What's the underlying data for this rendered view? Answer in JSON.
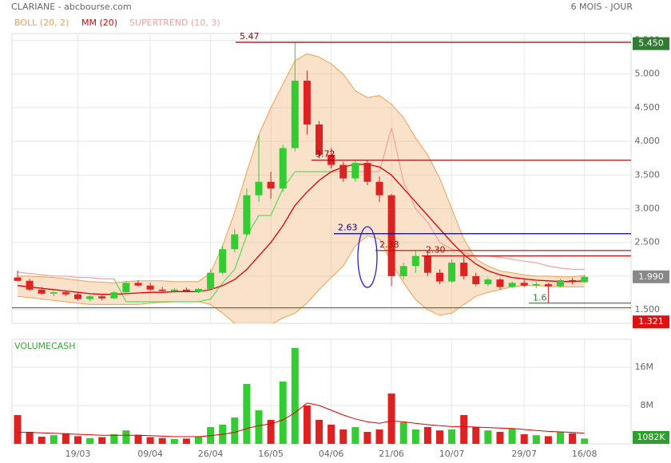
{
  "chart_data": {
    "type": "candlestick",
    "title": "CLARIANE - abcbourse.com",
    "period": "6 MOIS - JOUR",
    "categories": [
      null,
      null,
      null,
      null,
      null,
      "19/03",
      null,
      null,
      null,
      null,
      null,
      "09/04",
      null,
      null,
      null,
      null,
      "26/04",
      null,
      null,
      null,
      null,
      "16/05",
      null,
      null,
      null,
      null,
      "04/06",
      null,
      null,
      null,
      null,
      "21/06",
      null,
      null,
      null,
      null,
      "10/07",
      null,
      null,
      null,
      null,
      null,
      "29/07",
      null,
      null,
      null,
      null,
      "16/08"
    ],
    "open": [
      1.98,
      1.93,
      1.8,
      1.74,
      1.76,
      1.73,
      1.66,
      1.7,
      1.67,
      1.76,
      1.9,
      1.86,
      1.8,
      1.78,
      1.8,
      1.77,
      1.81,
      2.05,
      2.4,
      2.62,
      3.2,
      3.4,
      3.3,
      3.9,
      4.9,
      4.25,
      3.8,
      3.65,
      3.45,
      3.68,
      3.4,
      3.2,
      2.0,
      2.15,
      2.3,
      2.05,
      1.92,
      2.2,
      2.0,
      1.88,
      1.95,
      1.84,
      1.9,
      1.86,
      1.88,
      1.85,
      1.94,
      1.91
    ],
    "high": [
      2.08,
      1.96,
      1.84,
      1.78,
      1.79,
      1.76,
      1.72,
      1.74,
      1.78,
      1.92,
      1.94,
      1.9,
      1.84,
      1.82,
      1.83,
      1.82,
      2.1,
      2.45,
      2.7,
      3.3,
      4.1,
      3.55,
      3.95,
      5.47,
      5.05,
      4.3,
      3.9,
      3.7,
      3.72,
      3.72,
      3.48,
      3.22,
      2.2,
      2.38,
      2.35,
      2.1,
      2.25,
      2.3,
      2.05,
      1.98,
      1.97,
      1.92,
      1.96,
      1.92,
      1.9,
      1.96,
      1.97,
      2.02
    ],
    "low": [
      1.92,
      1.78,
      1.72,
      1.7,
      1.71,
      1.64,
      1.63,
      1.64,
      1.66,
      1.75,
      1.84,
      1.78,
      1.76,
      1.75,
      1.76,
      1.75,
      1.8,
      2.02,
      2.35,
      2.6,
      3.1,
      3.15,
      3.25,
      3.85,
      4.1,
      3.75,
      3.6,
      3.4,
      3.4,
      3.35,
      3.1,
      1.85,
      1.95,
      2.05,
      2.0,
      1.88,
      1.9,
      1.95,
      1.85,
      1.85,
      1.8,
      1.82,
      1.84,
      1.82,
      1.6,
      1.83,
      1.88,
      1.9
    ],
    "close": [
      1.93,
      1.8,
      1.74,
      1.76,
      1.73,
      1.66,
      1.7,
      1.67,
      1.76,
      1.9,
      1.86,
      1.8,
      1.78,
      1.8,
      1.77,
      1.81,
      2.05,
      2.4,
      2.62,
      3.2,
      3.4,
      3.3,
      3.9,
      4.9,
      4.25,
      3.8,
      3.65,
      3.45,
      3.68,
      3.4,
      3.2,
      2.0,
      2.15,
      2.3,
      2.05,
      1.92,
      2.2,
      2.0,
      1.88,
      1.95,
      1.84,
      1.9,
      1.86,
      1.88,
      1.85,
      1.94,
      1.91,
      1.99
    ],
    "up_color": "#33cc33",
    "down_color": "#dd2222",
    "ylim": [
      1.3,
      5.6
    ],
    "yticks": [
      {
        "value": 1.5,
        "label": "1.500"
      },
      {
        "value": 2,
        "label": "2.000"
      },
      {
        "value": 2.5,
        "label": "2.500"
      },
      {
        "value": 3,
        "label": "3.000"
      },
      {
        "value": 3.5,
        "label": "3.500"
      },
      {
        "value": 4,
        "label": "4.000"
      },
      {
        "value": 4.5,
        "label": "4.500"
      },
      {
        "value": 5,
        "label": "5.000"
      },
      {
        "value": 5.5,
        "label": "5.500"
      }
    ],
    "grid": true,
    "bollinger": {
      "name": "BOLL (20, 2)",
      "color": "#f0a050",
      "upper": [
        2.0,
        2.0,
        1.99,
        1.98,
        1.96,
        1.94,
        1.92,
        1.91,
        1.9,
        1.92,
        1.93,
        1.93,
        1.93,
        1.92,
        1.92,
        1.92,
        2.05,
        2.45,
        2.95,
        3.55,
        4.1,
        4.5,
        4.85,
        5.2,
        5.3,
        5.25,
        5.15,
        5.0,
        4.75,
        4.65,
        4.68,
        4.55,
        4.35,
        4.05,
        3.8,
        3.45,
        3.0,
        2.55,
        2.25,
        2.15,
        2.08,
        2.05,
        2.02,
        2.0,
        2.0,
        1.99,
        1.99,
        2.01
      ],
      "lower": [
        1.7,
        1.68,
        1.66,
        1.64,
        1.62,
        1.6,
        1.58,
        1.58,
        1.58,
        1.58,
        1.58,
        1.6,
        1.61,
        1.62,
        1.62,
        1.62,
        1.58,
        1.45,
        1.3,
        1.2,
        1.2,
        1.28,
        1.38,
        1.45,
        1.6,
        1.8,
        1.98,
        2.15,
        2.45,
        2.6,
        2.55,
        2.2,
        1.9,
        1.65,
        1.5,
        1.42,
        1.45,
        1.58,
        1.7,
        1.76,
        1.8,
        1.84,
        1.86,
        1.86,
        1.85,
        1.84,
        1.84,
        1.84
      ]
    },
    "moving_average": {
      "name": "MM (20)",
      "color": "#e00000",
      "values": [
        1.86,
        1.84,
        1.82,
        1.8,
        1.78,
        1.76,
        1.74,
        1.73,
        1.73,
        1.74,
        1.75,
        1.76,
        1.76,
        1.77,
        1.77,
        1.77,
        1.8,
        1.86,
        1.95,
        2.1,
        2.3,
        2.5,
        2.75,
        3.05,
        3.25,
        3.42,
        3.55,
        3.62,
        3.66,
        3.66,
        3.62,
        3.5,
        3.3,
        3.1,
        2.9,
        2.7,
        2.5,
        2.32,
        2.18,
        2.08,
        2.02,
        1.98,
        1.96,
        1.94,
        1.93,
        1.92,
        1.92,
        1.93
      ]
    },
    "supertrend": {
      "name": "SUPERTREND (10, 3)",
      "up_color": "#55dd55",
      "down_color": "#f4a0a0",
      "values": [
        2.06,
        2.04,
        2.02,
        2.0,
        2.0,
        1.98,
        1.98,
        1.96,
        1.96,
        1.62,
        1.62,
        1.62,
        1.62,
        1.62,
        1.62,
        1.62,
        1.66,
        1.9,
        2.1,
        2.6,
        2.9,
        2.9,
        3.3,
        3.55,
        3.55,
        3.55,
        3.55,
        3.55,
        3.55,
        3.55,
        3.55,
        4.2,
        3.4,
        3.0,
        2.8,
        2.5,
        2.4,
        2.35,
        2.3,
        2.3,
        2.28,
        2.25,
        2.22,
        2.2,
        2.15,
        2.12,
        2.1,
        2.1
      ]
    },
    "levels": [
      {
        "value": 5.47,
        "label": "5.47",
        "color": "#990000"
      },
      {
        "value": 3.72,
        "label": "3.72",
        "color": "#990000"
      },
      {
        "value": 2.63,
        "label": "2.63",
        "color": "#000099"
      },
      {
        "value": 2.38,
        "label": "2.38",
        "color": "#cc0000"
      },
      {
        "value": 2.3,
        "label": "2.30",
        "color": "#cc0000"
      },
      {
        "value": 1.6,
        "label": "1.6",
        "color": "#228822"
      },
      {
        "value": 1.53,
        "label": null,
        "color": "#228822"
      }
    ],
    "price_tags": [
      {
        "value": 5.45,
        "label": "5.450",
        "color": "#2e7d32"
      },
      {
        "value": 1.99,
        "label": "1.990",
        "color": "#888888"
      },
      {
        "value": 1.321,
        "label": "1.321",
        "color": "#dd1111"
      }
    ],
    "volume": {
      "name": "VOLUMECASH",
      "color": "#33aa33",
      "ma_color": "#e00000",
      "values": [
        6000000,
        2500000,
        1500000,
        1800000,
        2200000,
        1600000,
        1200000,
        1400000,
        2000000,
        2800000,
        1900000,
        1400000,
        1200000,
        1000000,
        1100000,
        1500000,
        3500000,
        4000000,
        5500000,
        12500000,
        7000000,
        5000000,
        13000000,
        20000000,
        8000000,
        5000000,
        4000000,
        3000000,
        3500000,
        2500000,
        3000000,
        10500000,
        4500000,
        3000000,
        3500000,
        2800000,
        3000000,
        6000000,
        3500000,
        2800000,
        2500000,
        3200000,
        2000000,
        1800000,
        1600000,
        2500000,
        2200000,
        1100000
      ],
      "ma": [
        2400000,
        2400000,
        2300000,
        2200000,
        2100000,
        2000000,
        1900000,
        1800000,
        1800000,
        1800000,
        1800000,
        1700000,
        1600000,
        1500000,
        1500000,
        1500000,
        1700000,
        2000000,
        2400000,
        3200000,
        3800000,
        4200000,
        5000000,
        6500000,
        8500000,
        8000000,
        7000000,
        6000000,
        5200000,
        4600000,
        4300000,
        4800000,
        4600000,
        4300000,
        4000000,
        3800000,
        3600000,
        3600000,
        3500000,
        3400000,
        3300000,
        3200000,
        3000000,
        2800000,
        2600000,
        2500000,
        2400000,
        2200000
      ],
      "ylim": [
        0,
        21800000
      ],
      "yticks": [
        {
          "value": 8000000,
          "label": "8M"
        },
        {
          "value": 16000000,
          "label": "16M"
        }
      ],
      "tag": {
        "value": 1082000,
        "label": "1082K",
        "color": "#2e9e2e"
      }
    }
  }
}
